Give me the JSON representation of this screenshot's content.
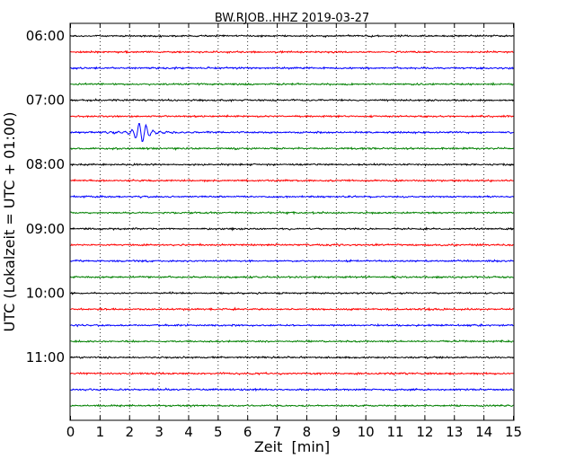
{
  "chart_data": {
    "type": "line",
    "title": "BW.RJOB..HHZ 2019-03-27",
    "xlabel": "Zeit  [min]",
    "ylabel": "UTC (Lokalzeit = UTC + 01:00)",
    "xlim": [
      0,
      15
    ],
    "x_ticks": [
      "0",
      "1",
      "2",
      "3",
      "4",
      "5",
      "6",
      "7",
      "8",
      "9",
      "10",
      "11",
      "12",
      "13",
      "14",
      "15"
    ],
    "hour_labels": [
      "06:00",
      "07:00",
      "08:00",
      "09:00",
      "10:00",
      "11:00"
    ],
    "grid": "vertical dotted lines at each minute",
    "traces_per_hour": 4,
    "trace_minutes": 15,
    "trace_colors": [
      "#000000",
      "#ff0000",
      "#0000ff",
      "#008000"
    ],
    "traces": [
      {
        "start": "06:00",
        "color": "#000000"
      },
      {
        "start": "06:15",
        "color": "#ff0000"
      },
      {
        "start": "06:30",
        "color": "#0000ff"
      },
      {
        "start": "06:45",
        "color": "#008000"
      },
      {
        "start": "07:00",
        "color": "#000000"
      },
      {
        "start": "07:15",
        "color": "#ff0000"
      },
      {
        "start": "07:30",
        "color": "#0000ff",
        "event": {
          "x_min": 0.5,
          "x_max": 5.0,
          "peak_min": 2.4
        }
      },
      {
        "start": "07:45",
        "color": "#008000"
      },
      {
        "start": "08:00",
        "color": "#000000"
      },
      {
        "start": "08:15",
        "color": "#ff0000"
      },
      {
        "start": "08:30",
        "color": "#0000ff"
      },
      {
        "start": "08:45",
        "color": "#008000"
      },
      {
        "start": "09:00",
        "color": "#000000"
      },
      {
        "start": "09:15",
        "color": "#ff0000"
      },
      {
        "start": "09:30",
        "color": "#0000ff"
      },
      {
        "start": "09:45",
        "color": "#008000"
      },
      {
        "start": "10:00",
        "color": "#000000"
      },
      {
        "start": "10:15",
        "color": "#ff0000"
      },
      {
        "start": "10:30",
        "color": "#0000ff"
      },
      {
        "start": "10:45",
        "color": "#008000"
      },
      {
        "start": "11:00",
        "color": "#000000"
      },
      {
        "start": "11:15",
        "color": "#ff0000"
      },
      {
        "start": "11:30",
        "color": "#0000ff"
      },
      {
        "start": "11:45",
        "color": "#008000"
      }
    ]
  }
}
